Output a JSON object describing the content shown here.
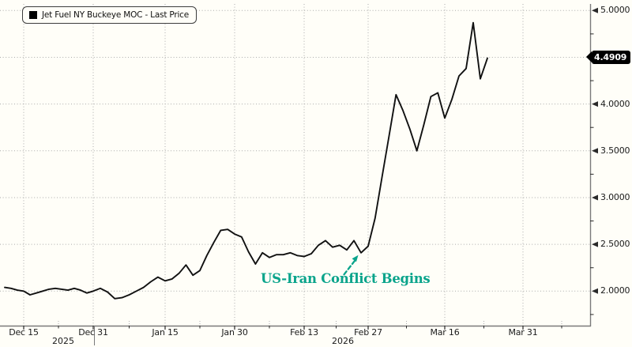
{
  "legend": {
    "label": "Jet Fuel NY Buckeye MOC - Last Price",
    "swatch_color": "#000000"
  },
  "last_price": {
    "value": "4.4909"
  },
  "annotation": {
    "text": "US-Iran Conflict Begins",
    "color": "#0aa48b",
    "target_date": "2026-02-26",
    "arrow_style": "dashed"
  },
  "colors": {
    "background": "#fffef8",
    "line": "#111111",
    "grid": "#ababab",
    "axis": "#7a7a7a",
    "tick": "#2a2a2a",
    "badge_bg": "#000000",
    "badge_text": "#ffffff"
  },
  "chart_data": {
    "type": "line",
    "title": "",
    "series_name": "Jet Fuel NY Buckeye MOC - Last Price",
    "xlabel": "",
    "ylabel": "",
    "grid": true,
    "legend_position": "top-left",
    "ylim": [
      1.63,
      5.06
    ],
    "y_ticks": [
      {
        "v": 2.0,
        "label": "2.0000"
      },
      {
        "v": 2.5,
        "label": "2.5000"
      },
      {
        "v": 3.0,
        "label": "3.0000"
      },
      {
        "v": 3.5,
        "label": "3.5000"
      },
      {
        "v": 4.0,
        "label": "4.0000"
      },
      {
        "v": 4.5,
        "label": ""
      },
      {
        "v": 5.0,
        "label": "5.0000"
      }
    ],
    "y_minor_ticks": [
      1.75,
      2.25,
      2.75,
      3.25,
      3.75,
      4.25,
      4.75
    ],
    "x_ticks": [
      {
        "label": "Dec 15",
        "date": "2025-12-15"
      },
      {
        "label": "Dec 31",
        "date": "2025-12-31"
      },
      {
        "label": "Jan 15",
        "date": "2026-01-15"
      },
      {
        "label": "Jan 30",
        "date": "2026-01-30"
      },
      {
        "label": "Feb 13",
        "date": "2026-02-13"
      },
      {
        "label": "Feb 27",
        "date": "2026-02-27"
      },
      {
        "label": "Mar 16",
        "date": "2026-03-16"
      },
      {
        "label": "Mar 31",
        "date": "2026-03-31"
      }
    ],
    "year_labels": [
      {
        "label": "2025"
      },
      {
        "label": "2026"
      }
    ],
    "points": [
      {
        "date": "2025-12-10",
        "price": 2.04
      },
      {
        "date": "2025-12-11",
        "price": 2.03
      },
      {
        "date": "2025-12-12",
        "price": 2.01
      },
      {
        "date": "2025-12-15",
        "price": 2.0
      },
      {
        "date": "2025-12-16",
        "price": 1.96
      },
      {
        "date": "2025-12-17",
        "price": 1.98
      },
      {
        "date": "2025-12-18",
        "price": 2.0
      },
      {
        "date": "2025-12-19",
        "price": 2.02
      },
      {
        "date": "2025-12-22",
        "price": 2.03
      },
      {
        "date": "2025-12-23",
        "price": 2.02
      },
      {
        "date": "2025-12-24",
        "price": 2.01
      },
      {
        "date": "2025-12-26",
        "price": 2.03
      },
      {
        "date": "2025-12-29",
        "price": 2.01
      },
      {
        "date": "2025-12-30",
        "price": 1.98
      },
      {
        "date": "2025-12-31",
        "price": 2.0
      },
      {
        "date": "2026-01-02",
        "price": 2.03
      },
      {
        "date": "2026-01-05",
        "price": 1.99
      },
      {
        "date": "2026-01-06",
        "price": 1.92
      },
      {
        "date": "2026-01-07",
        "price": 1.93
      },
      {
        "date": "2026-01-08",
        "price": 1.96
      },
      {
        "date": "2026-01-09",
        "price": 2.0
      },
      {
        "date": "2026-01-12",
        "price": 2.04
      },
      {
        "date": "2026-01-13",
        "price": 2.1
      },
      {
        "date": "2026-01-14",
        "price": 2.15
      },
      {
        "date": "2026-01-15",
        "price": 2.11
      },
      {
        "date": "2026-01-16",
        "price": 2.13
      },
      {
        "date": "2026-01-20",
        "price": 2.19
      },
      {
        "date": "2026-01-21",
        "price": 2.28
      },
      {
        "date": "2026-01-22",
        "price": 2.17
      },
      {
        "date": "2026-01-23",
        "price": 2.22
      },
      {
        "date": "2026-01-26",
        "price": 2.38
      },
      {
        "date": "2026-01-27",
        "price": 2.52
      },
      {
        "date": "2026-01-28",
        "price": 2.65
      },
      {
        "date": "2026-01-29",
        "price": 2.66
      },
      {
        "date": "2026-01-30",
        "price": 2.61
      },
      {
        "date": "2026-02-02",
        "price": 2.58
      },
      {
        "date": "2026-02-03",
        "price": 2.42
      },
      {
        "date": "2026-02-04",
        "price": 2.29
      },
      {
        "date": "2026-02-05",
        "price": 2.41
      },
      {
        "date": "2026-02-06",
        "price": 2.36
      },
      {
        "date": "2026-02-09",
        "price": 2.39
      },
      {
        "date": "2026-02-10",
        "price": 2.39
      },
      {
        "date": "2026-02-11",
        "price": 2.41
      },
      {
        "date": "2026-02-12",
        "price": 2.38
      },
      {
        "date": "2026-02-13",
        "price": 2.37
      },
      {
        "date": "2026-02-17",
        "price": 2.4
      },
      {
        "date": "2026-02-18",
        "price": 2.49
      },
      {
        "date": "2026-02-19",
        "price": 2.54
      },
      {
        "date": "2026-02-20",
        "price": 2.47
      },
      {
        "date": "2026-02-23",
        "price": 2.49
      },
      {
        "date": "2026-02-24",
        "price": 2.44
      },
      {
        "date": "2026-02-25",
        "price": 2.54
      },
      {
        "date": "2026-02-26",
        "price": 2.41
      },
      {
        "date": "2026-02-27",
        "price": 2.48
      },
      {
        "date": "2026-03-02",
        "price": 2.78
      },
      {
        "date": "2026-03-03",
        "price": 3.22
      },
      {
        "date": "2026-03-04",
        "price": 3.66
      },
      {
        "date": "2026-03-05",
        "price": 4.1
      },
      {
        "date": "2026-03-06",
        "price": 3.93
      },
      {
        "date": "2026-03-09",
        "price": 3.73
      },
      {
        "date": "2026-03-10",
        "price": 3.5
      },
      {
        "date": "2026-03-11",
        "price": 3.78
      },
      {
        "date": "2026-03-12",
        "price": 4.08
      },
      {
        "date": "2026-03-13",
        "price": 4.12
      },
      {
        "date": "2026-03-16",
        "price": 3.85
      },
      {
        "date": "2026-03-17",
        "price": 4.05
      },
      {
        "date": "2026-03-18",
        "price": 4.3
      },
      {
        "date": "2026-03-19",
        "price": 4.38
      },
      {
        "date": "2026-03-20",
        "price": 4.87
      },
      {
        "date": "2026-03-23",
        "price": 4.27
      },
      {
        "date": "2026-03-24",
        "price": 4.4909
      }
    ]
  }
}
